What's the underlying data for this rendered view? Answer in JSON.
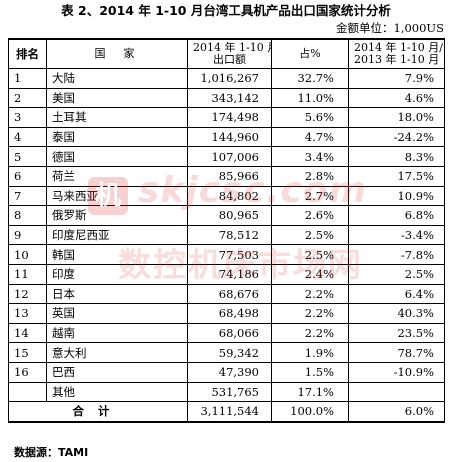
{
  "title": "表 2、2014 年 1-10 月台湾工具机产品出口国家统计分析",
  "unit_label": "金额单位：1,000US",
  "headers": {
    "rank": "排名",
    "country": "国家",
    "amount_line1": "2014 年 1-10 月",
    "amount_line2": "出口额",
    "share": "占%",
    "change_line1": "2014 年 1-10 月/",
    "change_line2": "2013 年 1-10 月"
  },
  "rows": [
    {
      "rank": "1",
      "country": "大陆",
      "amount": "1,016,267",
      "share": "32.7%",
      "change": "7.9%"
    },
    {
      "rank": "2",
      "country": "美国",
      "amount": "343,142",
      "share": "11.0%",
      "change": "4.6%"
    },
    {
      "rank": "3",
      "country": "土耳其",
      "amount": "174,498",
      "share": "5.6%",
      "change": "18.0%"
    },
    {
      "rank": "4",
      "country": "泰国",
      "amount": "144,960",
      "share": "4.7%",
      "change": "-24.2%"
    },
    {
      "rank": "5",
      "country": "德国",
      "amount": "107,006",
      "share": "3.4%",
      "change": "8.3%"
    },
    {
      "rank": "6",
      "country": "荷兰",
      "amount": "85,966",
      "share": "2.8%",
      "change": "17.5%"
    },
    {
      "rank": "7",
      "country": "马来西亚",
      "amount": "84,802",
      "share": "2.7%",
      "change": "10.9%"
    },
    {
      "rank": "8",
      "country": "俄罗斯",
      "amount": "80,965",
      "share": "2.6%",
      "change": "6.8%"
    },
    {
      "rank": "9",
      "country": "印度尼西亚",
      "amount": "78,512",
      "share": "2.5%",
      "change": "-3.4%"
    },
    {
      "rank": "10",
      "country": "韩国",
      "amount": "77,503",
      "share": "2.5%",
      "change": "-7.8%"
    },
    {
      "rank": "11",
      "country": "印度",
      "amount": "74,186",
      "share": "2.4%",
      "change": "2.5%"
    },
    {
      "rank": "12",
      "country": "日本",
      "amount": "68,676",
      "share": "2.2%",
      "change": "6.4%"
    },
    {
      "rank": "13",
      "country": "英国",
      "amount": "68,498",
      "share": "2.2%",
      "change": "40.3%"
    },
    {
      "rank": "14",
      "country": "越南",
      "amount": "68,066",
      "share": "2.2%",
      "change": "23.5%"
    },
    {
      "rank": "15",
      "country": "意大利",
      "amount": "59,342",
      "share": "1.9%",
      "change": "78.7%"
    },
    {
      "rank": "16",
      "country": "巴西",
      "amount": "47,390",
      "share": "1.5%",
      "change": "-10.9%"
    },
    {
      "rank": "",
      "country": "其他",
      "amount": "531,765",
      "share": "17.1%",
      "change": ""
    }
  ],
  "total": {
    "label": "合计",
    "amount": "3,111,544",
    "share": "100.0%",
    "change": "6.0%"
  },
  "source": "数据源：TAMI",
  "watermark": {
    "logo_char": "机",
    "url": "skjcsc.com",
    "cn": "数控机床市场网"
  }
}
